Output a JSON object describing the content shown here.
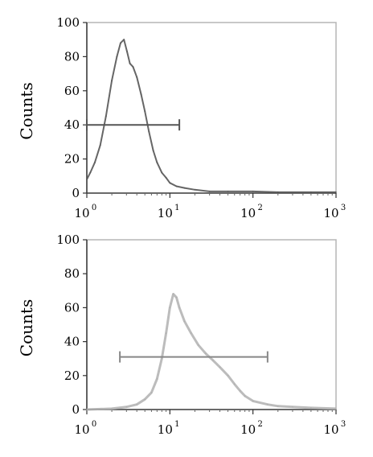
{
  "chart_data": [
    {
      "type": "line",
      "xscale": "log",
      "xlim": [
        1,
        1000
      ],
      "ylim": [
        0,
        100
      ],
      "ylabel": "Counts",
      "xlabel": "",
      "x_ticks": [
        {
          "base": "10",
          "exp": "0"
        },
        {
          "base": "10",
          "exp": "1"
        },
        {
          "base": "10",
          "exp": "2"
        },
        {
          "base": "10",
          "exp": "3"
        }
      ],
      "y_ticks": [
        "0",
        "20",
        "40",
        "60",
        "80",
        "100"
      ],
      "grid": false,
      "line_color": "#555555",
      "series": [
        {
          "x": [
            1,
            1.1,
            1.25,
            1.45,
            1.7,
            2.0,
            2.3,
            2.55,
            2.8,
            3.05,
            3.3,
            3.6,
            4.0,
            4.5,
            5.0,
            5.6,
            6.3,
            7.0,
            8.0,
            9.0,
            10,
            12,
            15,
            20,
            30,
            50,
            100,
            200,
            500,
            1000
          ],
          "y": [
            8,
            12,
            18,
            28,
            45,
            66,
            80,
            88,
            90,
            83,
            76,
            74,
            68,
            58,
            48,
            36,
            25,
            18,
            12,
            9,
            6,
            4,
            3,
            2,
            1,
            1,
            1,
            0.5,
            0.5,
            0.5
          ]
        }
      ],
      "marker_bar": {
        "x_start": 1,
        "x_end": 13,
        "y": 40
      }
    },
    {
      "type": "line",
      "xscale": "log",
      "xlim": [
        1,
        1000
      ],
      "ylim": [
        0,
        100
      ],
      "ylabel": "Counts",
      "xlabel": "",
      "x_ticks": [
        {
          "base": "10",
          "exp": "0"
        },
        {
          "base": "10",
          "exp": "1"
        },
        {
          "base": "10",
          "exp": "2"
        },
        {
          "base": "10",
          "exp": "3"
        }
      ],
      "y_ticks": [
        "0",
        "20",
        "40",
        "60",
        "80",
        "100"
      ],
      "grid": false,
      "line_color": "#b0b0b0",
      "series": [
        {
          "x": [
            1,
            2,
            3,
            4,
            5,
            6,
            7,
            8,
            9,
            10,
            11,
            12,
            13,
            15,
            18,
            22,
            27,
            33,
            40,
            50,
            60,
            70,
            80,
            100,
            150,
            200,
            300,
            500,
            1000
          ],
          "y": [
            0,
            0.5,
            1.5,
            3,
            6,
            10,
            18,
            30,
            45,
            60,
            68,
            66,
            60,
            52,
            45,
            38,
            33,
            29,
            25,
            20,
            15,
            11,
            8,
            5,
            3,
            2,
            1.5,
            1,
            0.5
          ]
        }
      ],
      "marker_bar": {
        "x_start": 2.5,
        "x_end": 150,
        "y": 31
      }
    }
  ]
}
